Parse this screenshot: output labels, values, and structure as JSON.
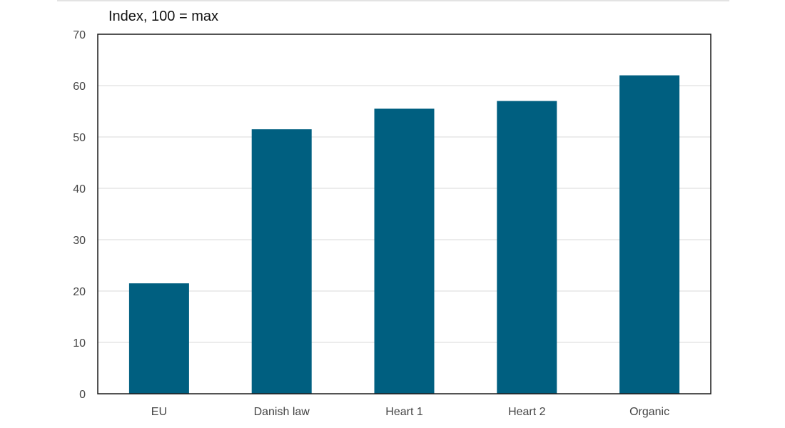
{
  "chart_data": {
    "type": "bar",
    "unit_label": "Index, 100 = max",
    "categories": [
      "EU",
      "Danish law",
      "Heart 1",
      "Heart 2",
      "Organic"
    ],
    "values": [
      21.5,
      51.5,
      55.5,
      57,
      62
    ],
    "ylim": [
      0,
      70
    ],
    "yticks": [
      0,
      10,
      20,
      30,
      40,
      50,
      60,
      70
    ],
    "grid": true,
    "legend": "none",
    "colors": {
      "bar": "#005f80",
      "grid": "#d9d9d9",
      "frame": "#1a1a1a"
    }
  }
}
